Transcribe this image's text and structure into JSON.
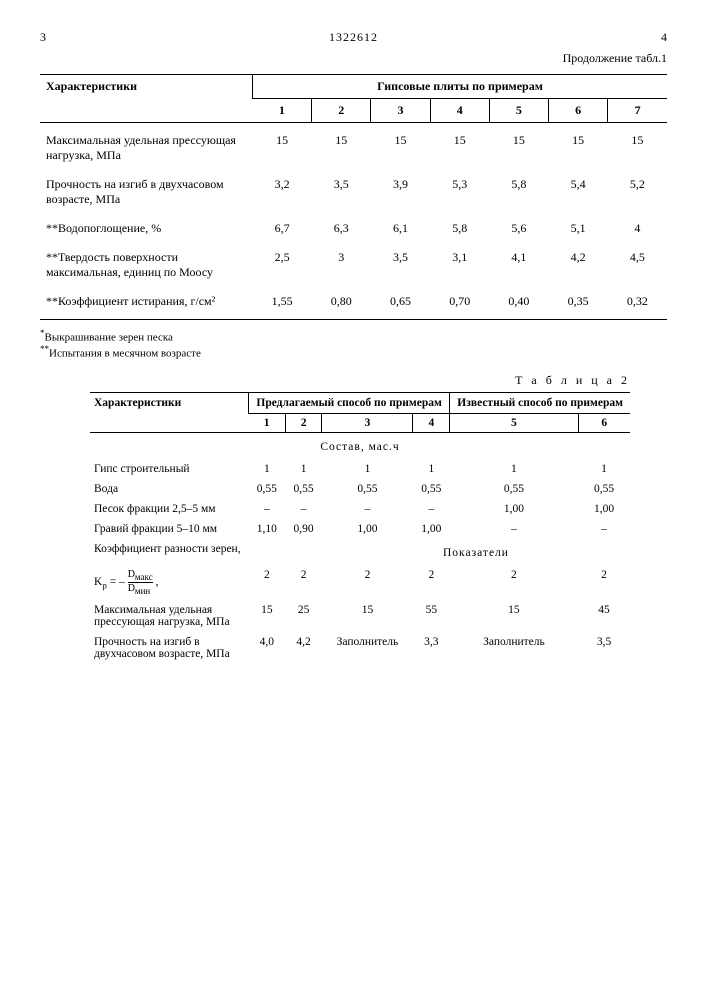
{
  "header": {
    "left_page": "3",
    "doc_number": "1322612",
    "right_page": "4",
    "continuation": "Продолжение табл.1"
  },
  "table1": {
    "col_label": "Характеристики",
    "span_label": "Гипсовые плиты по примерам",
    "cols": [
      "1",
      "2",
      "3",
      "4",
      "5",
      "6",
      "7"
    ],
    "rows": [
      {
        "label": "Максимальная удельная прессующая нагрузка, МПа",
        "v": [
          "15",
          "15",
          "15",
          "15",
          "15",
          "15",
          "15"
        ]
      },
      {
        "label": "Прочность на изгиб в двухчасовом возрасте, МПа",
        "v": [
          "3,2",
          "3,5",
          "3,9",
          "5,3",
          "5,8",
          "5,4",
          "5,2"
        ]
      },
      {
        "label": "**Водопоглощение, %",
        "v": [
          "6,7",
          "6,3",
          "6,1",
          "5,8",
          "5,6",
          "5,1",
          "4"
        ]
      },
      {
        "label": "**Твердость поверхности максимальная, единиц по Моосу",
        "v": [
          "2,5",
          "3",
          "3,5",
          "3,1",
          "4,1",
          "4,2",
          "4,5"
        ]
      },
      {
        "label": "**Коэффициент истирания, г/см²",
        "v": [
          "1,55",
          "0,80",
          "0,65",
          "0,70",
          "0,40",
          "0,35",
          "0,32"
        ]
      }
    ]
  },
  "footnotes": {
    "n1": "Выкрашивание зерен песка",
    "n2": "Испытания в месячном возрасте"
  },
  "table2": {
    "caption": "Т а б л и ц а  2",
    "col_label": "Характеристики",
    "grp1": "Предлагаемый способ по примерам",
    "grp2": "Известный способ по примерам",
    "cols": [
      "1",
      "2",
      "3",
      "4",
      "5",
      "6"
    ],
    "sect1": "Состав, мас.ч",
    "sect2": "Показатели",
    "rows1": [
      {
        "label": "Гипс строительный",
        "v": [
          "1",
          "1",
          "1",
          "1",
          "1",
          "1"
        ]
      },
      {
        "label": "Вода",
        "v": [
          "0,55",
          "0,55",
          "0,55",
          "0,55",
          "0,55",
          "0,55"
        ]
      },
      {
        "label": "Песок фракции 2,5–5 мм",
        "v": [
          "–",
          "–",
          "–",
          "–",
          "1,00",
          "1,00"
        ]
      },
      {
        "label": "Гравий фракции 5–10 мм",
        "v": [
          "1,10",
          "0,90",
          "1,00",
          "1,00",
          "–",
          "–"
        ]
      }
    ],
    "kp_label": "Коэффициент разности зерен,",
    "kp_formula": "Kᵨ = – Dмакс / Dмин ,",
    "kp_vals": [
      "2",
      "2",
      "2",
      "2",
      "2",
      "2"
    ],
    "rows2": [
      {
        "label": "Максимальная удельная прессующая нагрузка, МПа",
        "v": [
          "15",
          "25",
          "15",
          "55",
          "15",
          "45"
        ]
      },
      {
        "label": "Прочность на изгиб в двухчасовом возрасте, МПа",
        "v": [
          "4,0",
          "4,2",
          "Заполнитель",
          "3,3",
          "Заполнитель",
          "3,5"
        ]
      }
    ]
  }
}
